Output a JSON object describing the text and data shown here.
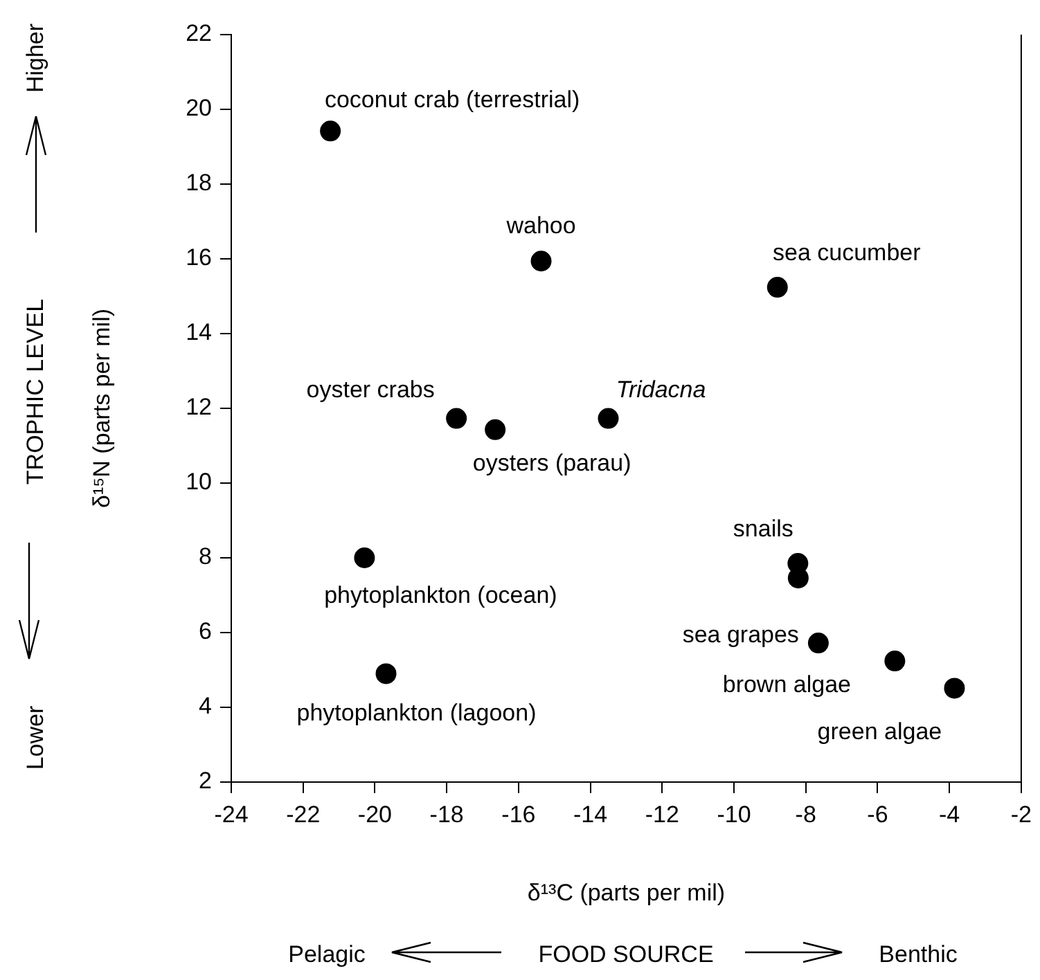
{
  "chart_data": {
    "type": "scatter",
    "xlabel": "δ¹³C (parts per mil)",
    "ylabel": "δ¹⁵N (parts per mil)",
    "x": [
      -21.24,
      -15.37,
      -8.79,
      -17.73,
      -16.65,
      -13.5,
      -20.29,
      -19.69,
      -8.22,
      -8.21,
      -7.65,
      -5.52,
      -3.86
    ],
    "series": [
      {
        "color": "#000000",
        "values": [
          19.42,
          15.94,
          15.24,
          11.73,
          11.43,
          11.73,
          8.0,
          4.9,
          7.85,
          7.46,
          5.72,
          5.24,
          4.51
        ]
      }
    ],
    "xlim": [
      -24,
      -2
    ],
    "xticks": [
      -24,
      -22,
      -20,
      -18,
      -16,
      -14,
      -12,
      -10,
      -8,
      -6,
      -4,
      -2
    ],
    "ylim": [
      2,
      22
    ],
    "yticks": [
      2,
      4,
      6,
      8,
      10,
      12,
      14,
      16,
      18,
      20,
      22
    ],
    "grid": false,
    "legend": false,
    "marker": "circle",
    "annotations": [
      {
        "text": "coconut crab (terrestrial)",
        "x": -21.24,
        "y": 19.42
      },
      {
        "text": "wahoo",
        "x": -15.37,
        "y": 15.94
      },
      {
        "text": "sea cucumber",
        "x": -8.79,
        "y": 15.24
      },
      {
        "text": "oyster crabs",
        "x": -17.73,
        "y": 11.73
      },
      {
        "text": "oysters (parau)",
        "x": -16.65,
        "y": 11.43
      },
      {
        "text": "Tridacna",
        "x": -13.5,
        "y": 11.73
      },
      {
        "text": "phytoplankton (ocean)",
        "x": -20.29,
        "y": 8.0
      },
      {
        "text": "phytoplankton (lagoon)",
        "x": -19.69,
        "y": 4.9
      },
      {
        "text": "snails",
        "x": -8.22,
        "y": 7.85
      },
      {
        "text": "sea grapes",
        "x": -7.65,
        "y": 5.72
      },
      {
        "text": "brown algae",
        "x": -5.52,
        "y": 5.24
      },
      {
        "text": "green algae",
        "x": -3.86,
        "y": 4.51
      },
      "Higher",
      "TROPHIC LEVEL",
      "Lower",
      "Pelagic",
      "FOOD SOURCE",
      "Benthic"
    ]
  }
}
